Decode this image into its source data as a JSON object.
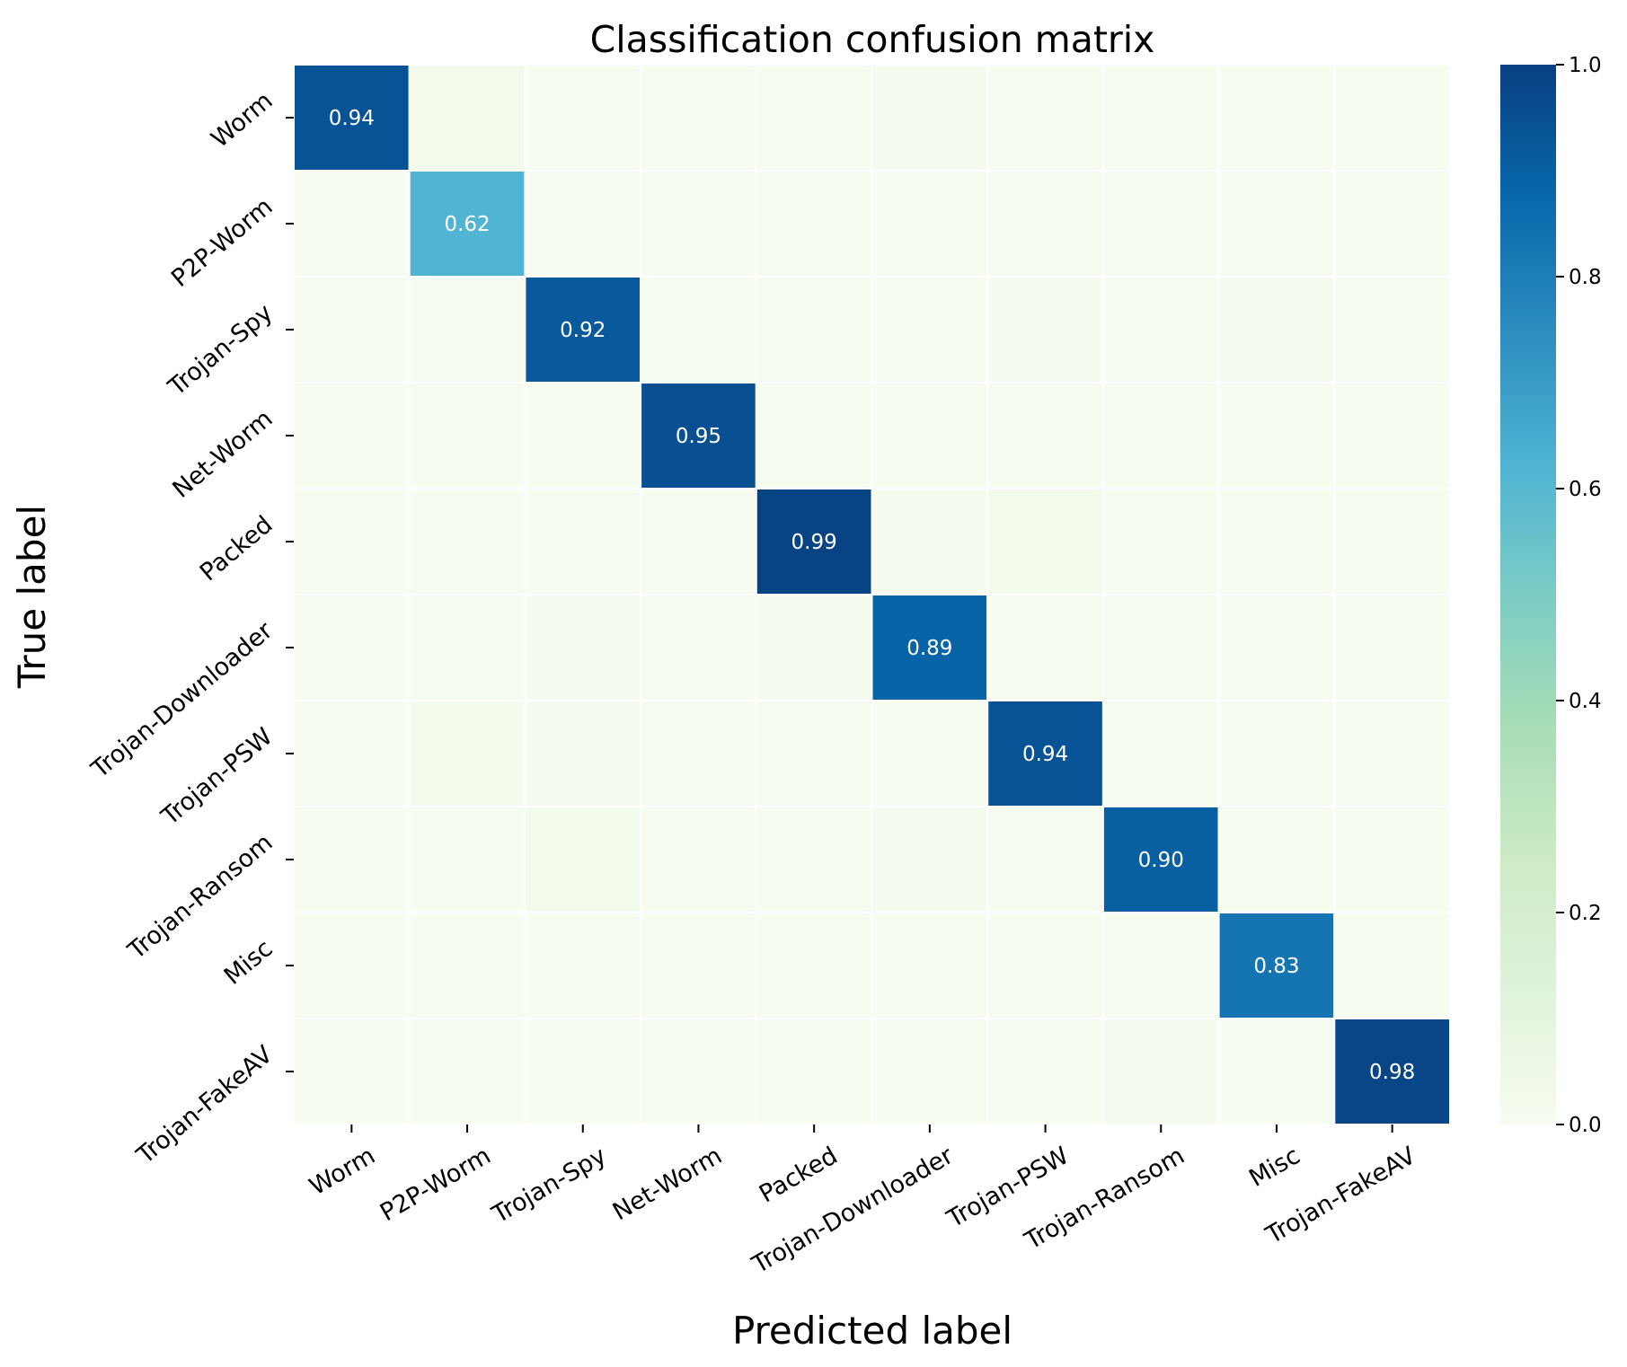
{
  "chart_data": {
    "type": "heatmap",
    "title": "Classification confusion matrix",
    "xlabel": "Predicted label",
    "ylabel": "True label",
    "x_categories": [
      "Worm",
      "P2P-Worm",
      "Trojan-Spy",
      "Net-Worm",
      "Packed",
      "Trojan-Downloader",
      "Trojan-PSW",
      "Trojan-Ransom",
      "Misc",
      "Trojan-FakeAV"
    ],
    "y_categories": [
      "Worm",
      "P2P-Worm",
      "Trojan-Spy",
      "Net-Worm",
      "Packed",
      "Trojan-Downloader",
      "Trojan-PSW",
      "Trojan-Ransom",
      "Misc",
      "Trojan-FakeAV"
    ],
    "matrix": [
      [
        0.94,
        0.03,
        0.0,
        0.0,
        0.0,
        0.01,
        0.0,
        0.0,
        0.0,
        0.0
      ],
      [
        0.0,
        0.62,
        0.0,
        0.0,
        0.0,
        0.0,
        0.0,
        0.0,
        0.0,
        0.0
      ],
      [
        0.0,
        0.0,
        0.92,
        0.0,
        0.0,
        0.0,
        0.01,
        0.0,
        0.01,
        0.0
      ],
      [
        0.0,
        0.0,
        0.0,
        0.95,
        0.0,
        0.0,
        0.0,
        0.0,
        0.0,
        0.0
      ],
      [
        0.0,
        0.0,
        0.0,
        0.0,
        0.99,
        0.01,
        0.02,
        0.0,
        0.0,
        0.0
      ],
      [
        0.0,
        0.0,
        0.01,
        0.0,
        0.01,
        0.89,
        0.0,
        0.0,
        0.0,
        0.0
      ],
      [
        0.0,
        0.02,
        0.01,
        0.0,
        0.0,
        0.0,
        0.94,
        0.0,
        0.0,
        0.0
      ],
      [
        0.0,
        0.0,
        0.03,
        0.0,
        0.0,
        0.01,
        0.0,
        0.9,
        0.0,
        0.0
      ],
      [
        0.0,
        0.0,
        0.0,
        0.0,
        0.0,
        0.0,
        0.0,
        0.0,
        0.83,
        0.0
      ],
      [
        0.0,
        0.0,
        0.0,
        0.0,
        0.0,
        0.0,
        0.0,
        0.01,
        0.0,
        0.98
      ]
    ],
    "annotations": [
      "0.94",
      "0.62",
      "0.92",
      "0.95",
      "0.99",
      "0.89",
      "0.94",
      "0.90",
      "0.83",
      "0.98"
    ],
    "colorbar": {
      "colormap": "GnBu",
      "range": [
        0.0,
        1.0
      ],
      "ticks": [
        "0.0",
        "0.2",
        "0.4",
        "0.6",
        "0.8",
        "1.0"
      ]
    },
    "grid": false,
    "legend": "colorbar-right"
  },
  "colors": {
    "annotation_text": "#ffffff",
    "axis_text": "#000000",
    "cell_border": "#ffffff"
  }
}
